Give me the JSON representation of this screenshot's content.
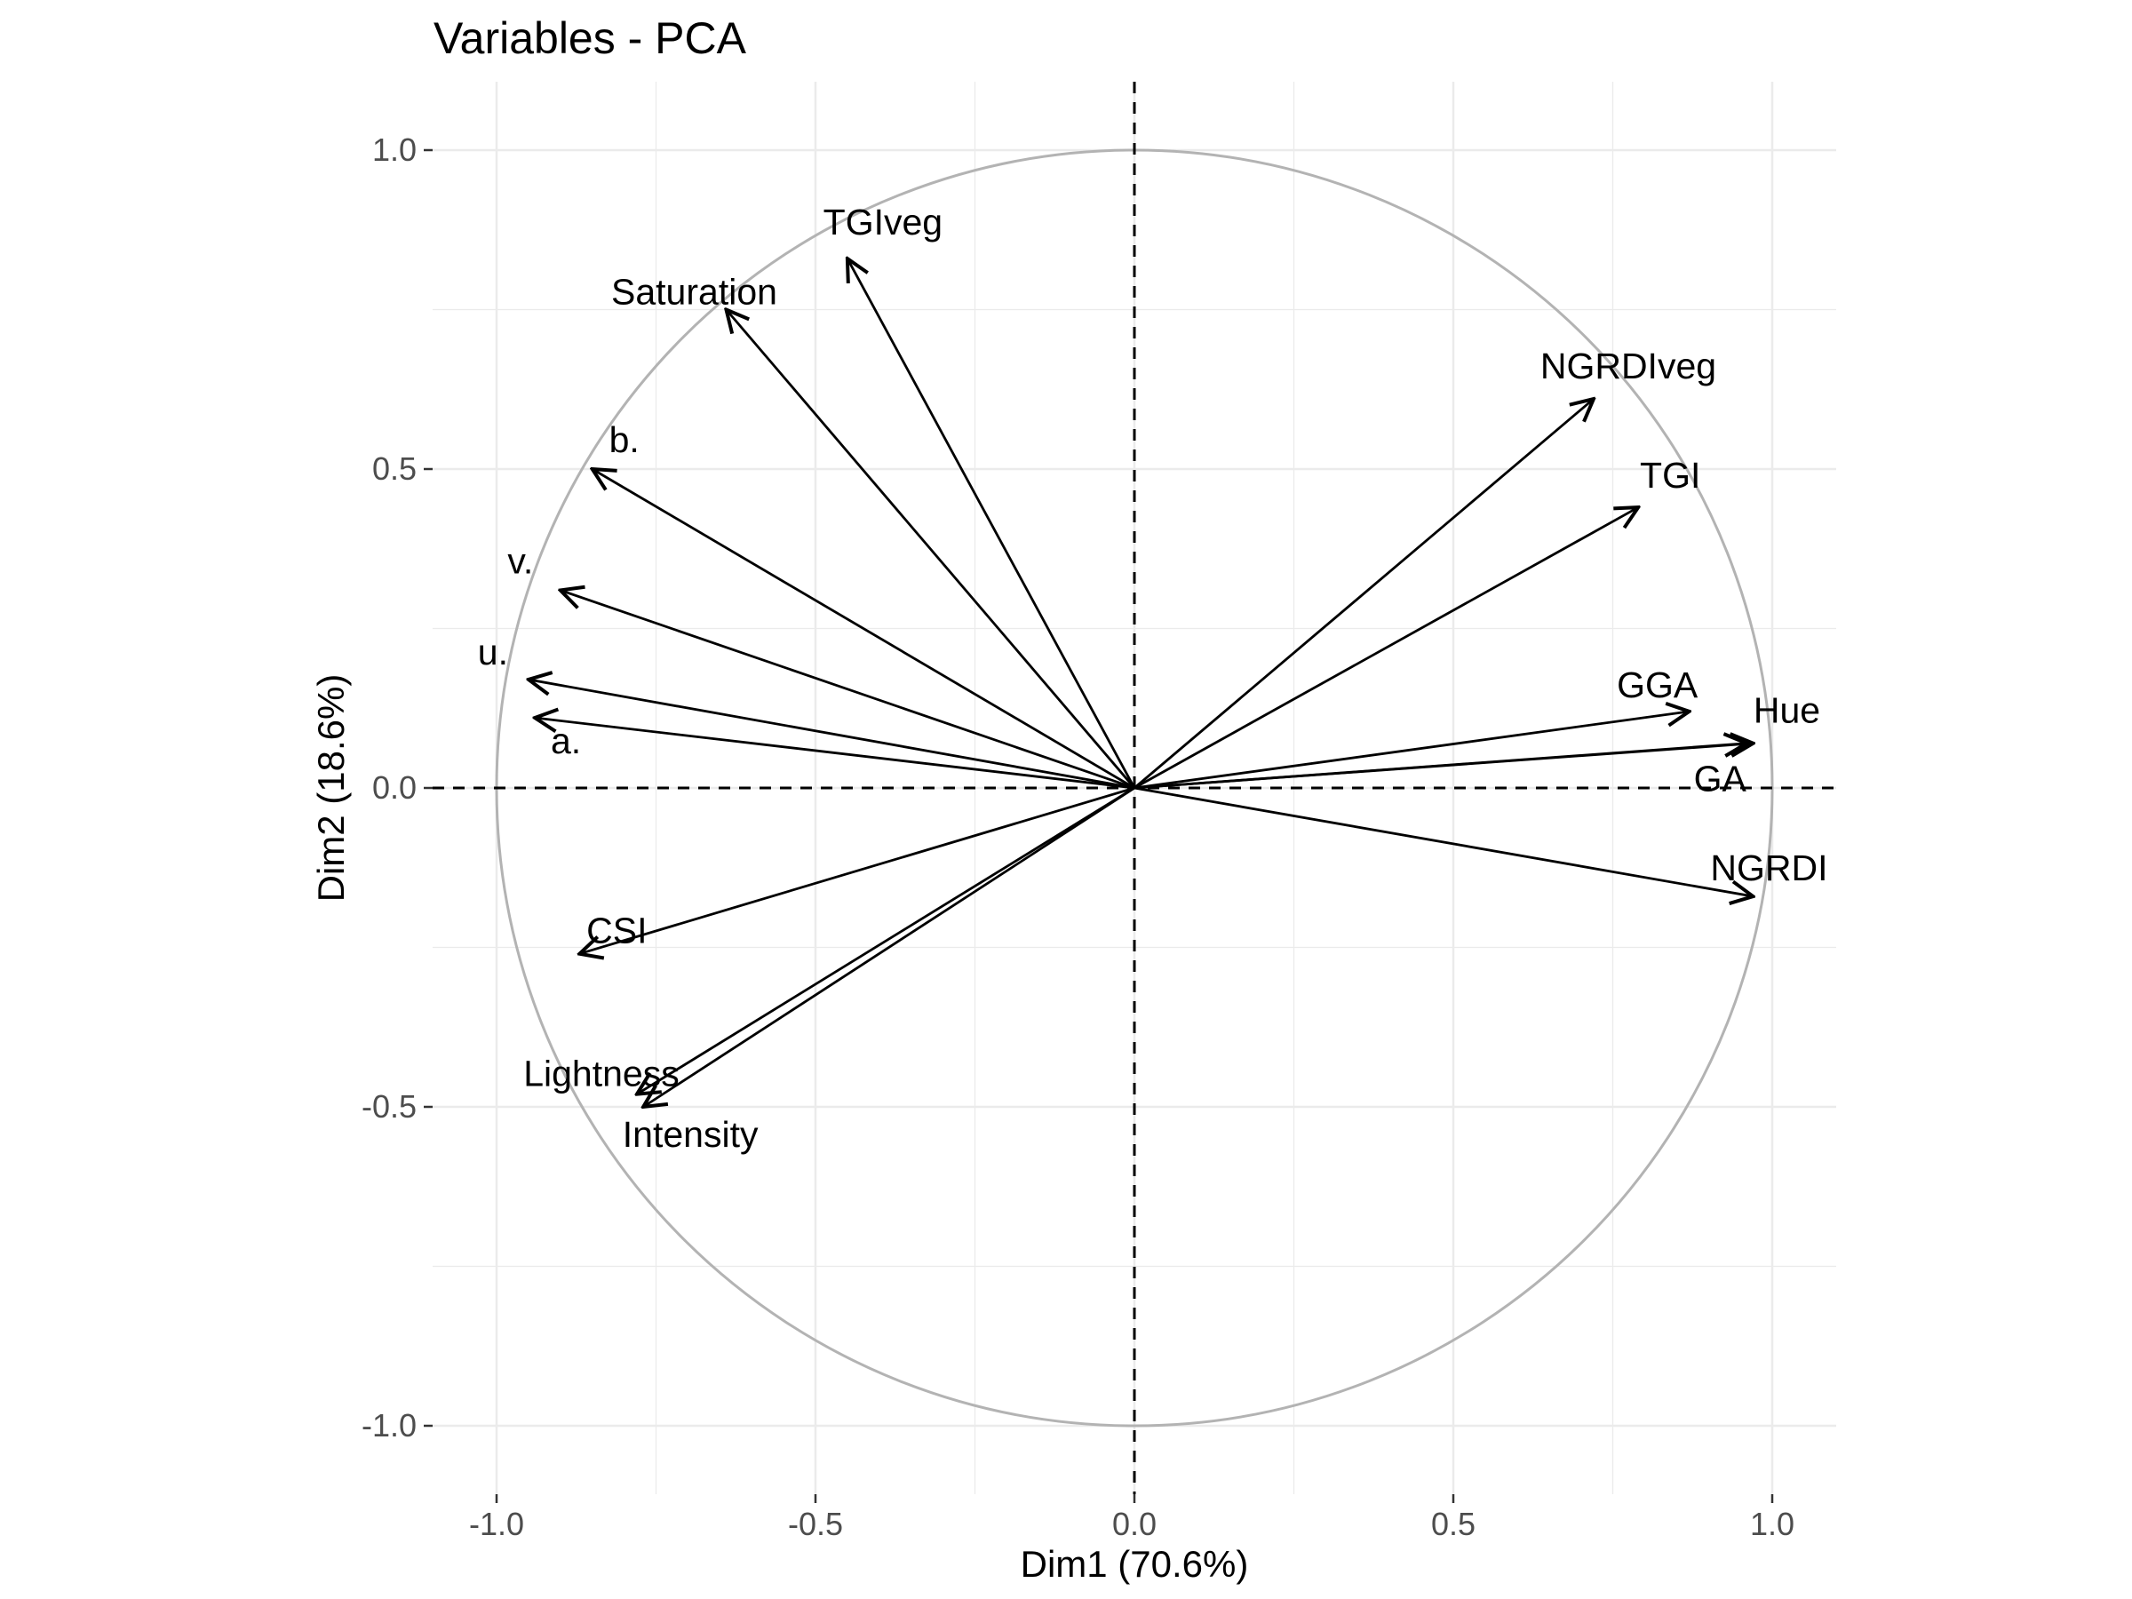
{
  "chart_data": {
    "type": "scatter",
    "title": "Variables - PCA",
    "xlabel": "Dim1 (70.6%)",
    "ylabel": "Dim2 (18.6%)",
    "xlim": [
      -1.1,
      1.1
    ],
    "ylim": [
      -1.1,
      1.1
    ],
    "grid": true,
    "x_ticks": [
      {
        "value": -1.0,
        "label": "-1.0"
      },
      {
        "value": -0.5,
        "label": "-0.5"
      },
      {
        "value": 0.0,
        "label": "0.0"
      },
      {
        "value": 0.5,
        "label": "0.5"
      },
      {
        "value": 1.0,
        "label": "1.0"
      }
    ],
    "y_ticks": [
      {
        "value": 1.0,
        "label": "1.0"
      },
      {
        "value": 0.5,
        "label": "0.5"
      },
      {
        "value": 0.0,
        "label": "0.0"
      },
      {
        "value": -0.5,
        "label": "-0.5"
      },
      {
        "value": -1.0,
        "label": "-1.0"
      }
    ],
    "colors": {
      "arrow": "#000000",
      "circle": "#b3b3b3",
      "grid": "#ebebeb",
      "reference_line": "#000000"
    },
    "variables": [
      {
        "name": "TGIveg",
        "x": -0.45,
        "y": 0.83
      },
      {
        "name": "Saturation",
        "x": -0.64,
        "y": 0.75
      },
      {
        "name": "b.",
        "x": -0.85,
        "y": 0.5
      },
      {
        "name": "v.",
        "x": -0.9,
        "y": 0.31
      },
      {
        "name": "u.",
        "x": -0.95,
        "y": 0.17
      },
      {
        "name": "a.",
        "x": -0.94,
        "y": 0.11
      },
      {
        "name": "CSI",
        "x": -0.87,
        "y": -0.26
      },
      {
        "name": "Lightness",
        "x": -0.78,
        "y": -0.48
      },
      {
        "name": "Intensity",
        "x": -0.77,
        "y": -0.5
      },
      {
        "name": "NGRDIveg",
        "x": 0.72,
        "y": 0.61
      },
      {
        "name": "TGI",
        "x": 0.79,
        "y": 0.44
      },
      {
        "name": "GGA",
        "x": 0.87,
        "y": 0.12
      },
      {
        "name": "Hue",
        "x": 0.97,
        "y": 0.07
      },
      {
        "name": "GA",
        "x": 0.96,
        "y": 0.07
      },
      {
        "name": "NGRDI",
        "x": 0.97,
        "y": -0.17
      }
    ]
  }
}
